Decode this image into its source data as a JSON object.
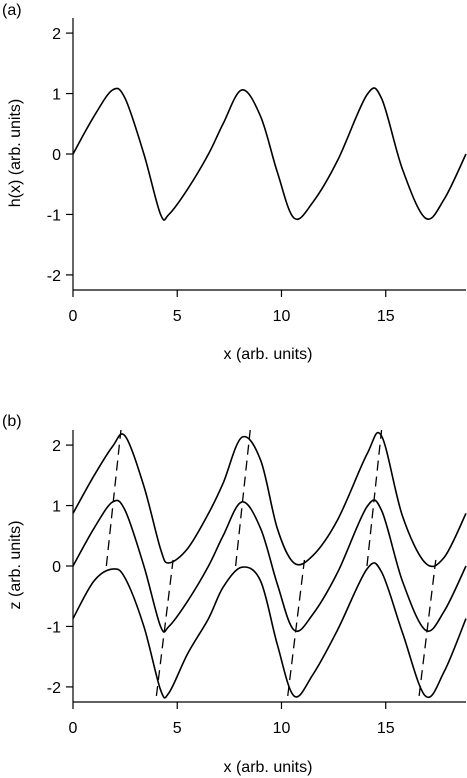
{
  "chart_data": [
    {
      "panel_label": "(a)",
      "type": "line",
      "xlabel": "x (arb. units)",
      "ylabel": "h(x) (arb. units)",
      "xlim": [
        0,
        18.85
      ],
      "ylim": [
        -2.25,
        2.25
      ],
      "xticks": [
        0,
        5,
        10,
        15
      ],
      "yticks": [
        -2,
        -1,
        0,
        1,
        2
      ],
      "grid": false,
      "series": [
        {
          "x": [
            0,
            1.0,
            1.9,
            2.5,
            3.4,
            4.2,
            4.6,
            5.5,
            6.5,
            7.2,
            8.1,
            9.0,
            9.8,
            10.6,
            11.5,
            12.7,
            14.1,
            14.8,
            15.8,
            16.9,
            17.8,
            18.85
          ],
          "y": [
            0,
            0.62,
            1.06,
            0.92,
            0.0,
            -1.0,
            -1.0,
            -0.58,
            0.0,
            0.5,
            1.06,
            0.62,
            -0.3,
            -1.06,
            -0.8,
            -0.1,
            0.98,
            0.92,
            -0.25,
            -1.06,
            -0.75,
            0
          ]
        }
      ]
    },
    {
      "panel_label": "(b)",
      "type": "line",
      "xlabel": "x (arb. units)",
      "ylabel": "z (arb. units)",
      "xlim": [
        0,
        18.85
      ],
      "ylim": [
        -2.25,
        2.25
      ],
      "xticks": [
        0,
        5,
        10,
        15
      ],
      "yticks": [
        -2,
        -1,
        0,
        1,
        2
      ],
      "grid": false,
      "series": [
        {
          "x": [
            0,
            1.0,
            1.9,
            2.5,
            3.4,
            4.2,
            4.6,
            5.5,
            6.5,
            7.2,
            8.1,
            9.0,
            9.8,
            10.6,
            11.5,
            12.7,
            14.1,
            14.8,
            15.8,
            16.9,
            17.8,
            18.85
          ],
          "y": [
            0.87,
            1.49,
            1.98,
            2.15,
            1.32,
            0.28,
            0.05,
            0.29,
            0.87,
            1.37,
            2.13,
            1.75,
            0.62,
            0.05,
            0.17,
            0.77,
            1.85,
            2.15,
            0.83,
            0.05,
            0.14,
            0.87
          ]
        },
        {
          "x": [
            0,
            1.0,
            1.9,
            2.5,
            3.4,
            4.2,
            4.6,
            5.5,
            6.5,
            7.2,
            8.1,
            9.0,
            9.8,
            10.6,
            11.5,
            12.7,
            14.1,
            14.8,
            15.8,
            16.9,
            17.8,
            18.85
          ],
          "y": [
            0,
            0.62,
            1.06,
            0.92,
            0.0,
            -1.0,
            -1.0,
            -0.58,
            0.0,
            0.5,
            1.06,
            0.62,
            -0.3,
            -1.06,
            -0.8,
            -0.1,
            0.98,
            0.92,
            -0.25,
            -1.06,
            -0.75,
            0
          ]
        },
        {
          "x": [
            0,
            1.0,
            1.9,
            2.5,
            3.4,
            4.2,
            4.6,
            5.5,
            6.5,
            7.2,
            8.1,
            9.0,
            9.8,
            10.6,
            11.5,
            12.7,
            14.1,
            14.8,
            15.8,
            16.9,
            17.8,
            18.85
          ],
          "y": [
            -0.87,
            -0.25,
            -0.05,
            -0.2,
            -1.0,
            -2.05,
            -2.1,
            -1.45,
            -0.87,
            -0.35,
            -0.02,
            -0.25,
            -1.3,
            -2.15,
            -1.8,
            -1.05,
            -0.05,
            -0.1,
            -1.1,
            -2.15,
            -1.75,
            -0.87
          ]
        }
      ],
      "annotations": {
        "crest_lines_dashed": [
          {
            "x": [
              1.6,
              2.3
            ],
            "y": [
              0.0,
              2.25
            ]
          },
          {
            "x": [
              7.8,
              8.5
            ],
            "y": [
              0.0,
              2.25
            ]
          },
          {
            "x": [
              14.1,
              14.8
            ],
            "y": [
              0.0,
              2.25
            ]
          }
        ],
        "trough_lines_dashed": [
          {
            "x": [
              4.0,
              4.8
            ],
            "y": [
              -2.15,
              0.1
            ]
          },
          {
            "x": [
              10.3,
              11.1
            ],
            "y": [
              -2.15,
              0.1
            ]
          },
          {
            "x": [
              16.6,
              17.4
            ],
            "y": [
              -2.15,
              0.1
            ]
          }
        ]
      }
    }
  ]
}
